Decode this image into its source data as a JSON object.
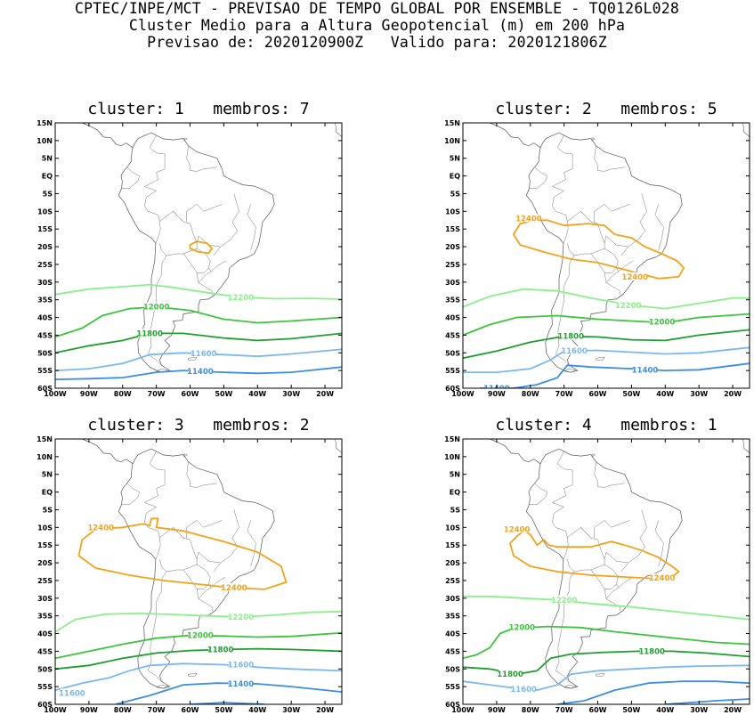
{
  "header": {
    "line1": "CPTEC/INPE/MCT - PREVISAO DE TEMPO GLOBAL POR ENSEMBLE - TQ0126L028",
    "line2": "Cluster Medio para a Altura Geopotencial (m) em 200 hPa",
    "line3": "Previsao de: 2020120900Z   Valido para: 2020121806Z"
  },
  "axes": {
    "lat_labels": [
      "15N",
      "10N",
      "5N",
      "EQ",
      "5S",
      "10S",
      "15S",
      "20S",
      "25S",
      "30S",
      "35S",
      "40S",
      "45S",
      "50S",
      "55S",
      "60S"
    ],
    "lon_labels": [
      "100W",
      "90W",
      "80W",
      "70W",
      "60W",
      "50W",
      "40W",
      "30W",
      "20W"
    ]
  },
  "colors": {
    "c12400": "#f4a21a",
    "c12200": "#8af08a",
    "c12000": "#3cc43c",
    "c11800": "#1e9e2e",
    "c11600": "#7ab8f0",
    "c11400": "#3c8ee0"
  },
  "panels": [
    {
      "title": "cluster: 1   membros: 7",
      "labels": [
        "12200",
        "12000",
        "11800",
        "11600",
        "11400"
      ]
    },
    {
      "title": "cluster: 2   membros: 5",
      "labels": [
        "12400",
        "12400",
        "12200",
        "12000",
        "11800",
        "11600",
        "11400",
        "11400"
      ]
    },
    {
      "title": "cluster: 3   membros: 2",
      "labels": [
        "12400",
        "12400",
        "12200",
        "12000",
        "11800",
        "11600",
        "11400",
        "11600"
      ]
    },
    {
      "title": "cluster: 4   membros: 1",
      "labels": [
        "12400",
        "12400",
        "12200",
        "12000",
        "11800",
        "11800",
        "11600"
      ]
    }
  ]
}
